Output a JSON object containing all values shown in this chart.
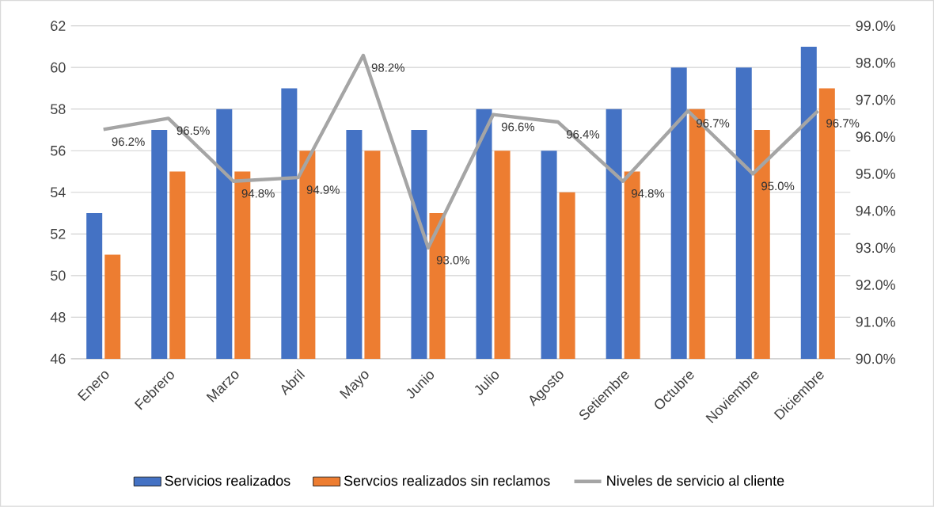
{
  "chart_data": {
    "type": "bar",
    "categories": [
      "Enero",
      "Febrero",
      "Marzo",
      "Abril",
      "Mayo",
      "Junio",
      "Julio",
      "Agosto",
      "Setiembre",
      "Octubre",
      "Noviembre",
      "Diciembre"
    ],
    "series": [
      {
        "name": "Servicios realizados",
        "color": "#4472c4",
        "values": [
          53,
          57,
          58,
          59,
          57,
          57,
          58,
          56,
          58,
          60,
          60,
          61
        ]
      },
      {
        "name": "Servcios realizados sin reclamos",
        "color": "#ed7d31",
        "values": [
          51,
          55,
          55,
          56,
          56,
          53,
          56,
          54,
          55,
          58,
          57,
          59
        ]
      },
      {
        "name": "Niveles de servicio al cliente",
        "color": "#a5a5a5",
        "type": "line",
        "axis": "y2",
        "values": [
          96.2,
          96.5,
          94.8,
          94.9,
          98.2,
          93.0,
          96.6,
          96.4,
          94.8,
          96.7,
          95.0,
          96.7
        ],
        "value_labels": [
          "96.2%",
          "96.5%",
          "94.8%",
          "94.9%",
          "98.2%",
          "93.0%",
          "96.6%",
          "96.4%",
          "94.8%",
          "96.7%",
          "95.0%",
          "96.7%"
        ]
      }
    ],
    "ylim": [
      46,
      62
    ],
    "yticks": [
      46,
      48,
      50,
      52,
      54,
      56,
      58,
      60,
      62
    ],
    "y2lim": [
      90,
      99
    ],
    "y2ticks": [
      {
        "value": 90,
        "label": "90.0%"
      },
      {
        "value": 91,
        "label": "91.0%"
      },
      {
        "value": 92,
        "label": "92.0%"
      },
      {
        "value": 93,
        "label": "93.0%"
      },
      {
        "value": 94,
        "label": "94.0%"
      },
      {
        "value": 95,
        "label": "95.0%"
      },
      {
        "value": 96,
        "label": "96.0%"
      },
      {
        "value": 97,
        "label": "97.0%"
      },
      {
        "value": 98,
        "label": "98.0%"
      },
      {
        "value": 99,
        "label": "99.0%"
      }
    ],
    "grid": "y",
    "legend": "bottom",
    "marker": "none"
  }
}
